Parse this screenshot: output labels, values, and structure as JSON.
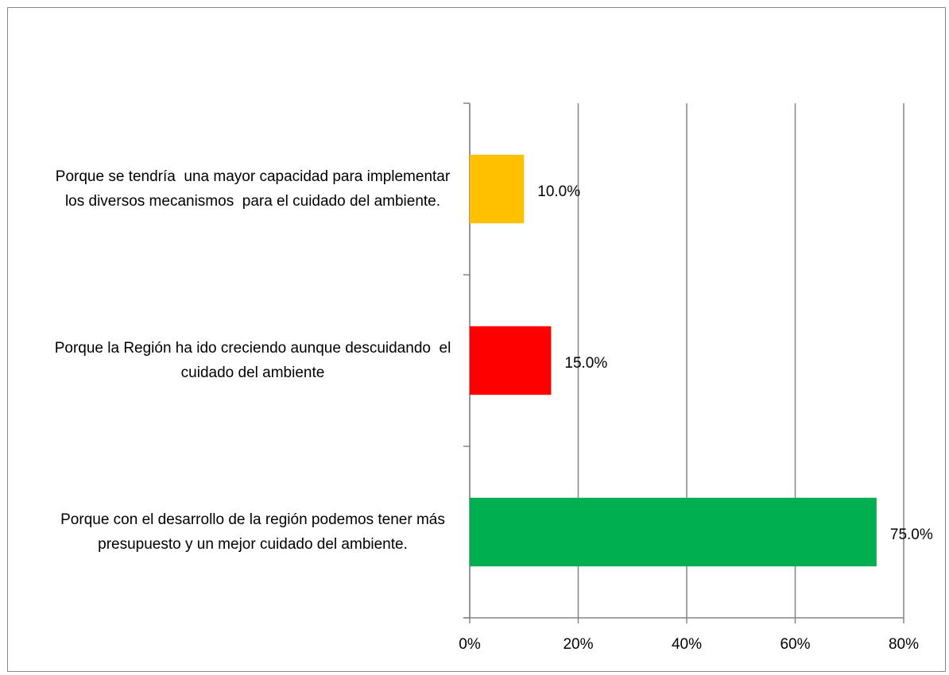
{
  "chart_data": {
    "type": "bar",
    "orientation": "horizontal",
    "categories": [
      "Porque se tendría  una mayor capacidad para implementar los diversos mecanismos  para el cuidado del ambiente.",
      "Porque la Región ha ido creciendo aunque descuidando  el cuidado del ambiente",
      "Porque con el desarrollo de la región podemos tener más presupuesto y un mejor cuidado del ambiente."
    ],
    "values": [
      10,
      15,
      75
    ],
    "value_labels": [
      "10.0%",
      "15.0%",
      "75.0%"
    ],
    "colors": [
      "#ffc000",
      "#ff0000",
      "#00b050"
    ],
    "xlim": [
      0,
      80
    ],
    "xticks": [
      {
        "value": 0,
        "label": "0%"
      },
      {
        "value": 20,
        "label": "20%"
      },
      {
        "value": 40,
        "label": "40%"
      },
      {
        "value": 60,
        "label": "60%"
      },
      {
        "value": 80,
        "label": "80%"
      }
    ],
    "grid": true
  }
}
